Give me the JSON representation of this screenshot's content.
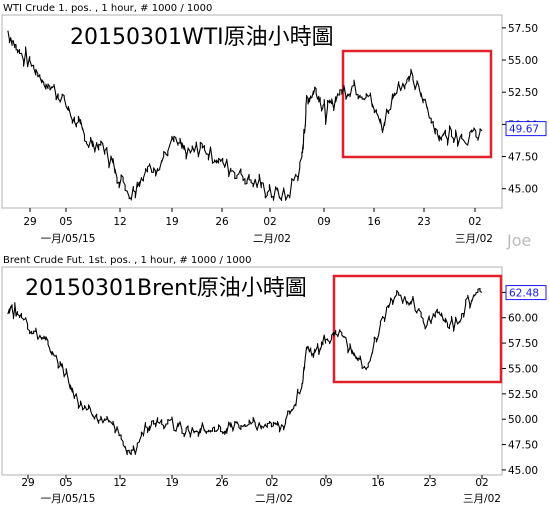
{
  "accent_colors": {
    "highlight_box": "#e0202a",
    "last_price": "#1a1aff",
    "price": "#000000"
  },
  "watermark": "Joe",
  "charts": [
    {
      "id": "wti",
      "header": "WTI Crude 1. pos. , 1 hour, # 1000 / 1000",
      "overlay_title": "20150301WTI原油小時圖",
      "last_value_label": "49.67"
    },
    {
      "id": "brent",
      "header": "Brent Crude Fut. 1st. pos. , 1 hour, # 1000 / 1000",
      "overlay_title": "20150301Brent原油小時圖",
      "last_value_label": "62.48"
    }
  ],
  "chart_data": [
    {
      "type": "line",
      "title": "20150301WTI原油小時圖",
      "subtitle": "WTI Crude 1. pos. , 1 hour, # 1000 / 1000",
      "xlabel": "",
      "ylabel": "",
      "ylim": [
        43.5,
        58.5
      ],
      "yticks": [
        "57.50",
        "55.00",
        "52.50",
        "50.00",
        "47.50",
        "45.00"
      ],
      "ytick_values": [
        57.5,
        55,
        52.5,
        50,
        47.5,
        45
      ],
      "xticks": [
        "29",
        "05",
        "12",
        "19",
        "26",
        "02",
        "09",
        "16",
        "23",
        "02"
      ],
      "month_labels": [
        "一月/05/15",
        "二月/02",
        "三月/02"
      ],
      "x": [
        0,
        2,
        5,
        8,
        11,
        14,
        17,
        20,
        23,
        26,
        29,
        32,
        35,
        38,
        41,
        44,
        47,
        50,
        53,
        56,
        59,
        62,
        63,
        65,
        67,
        70,
        73,
        76,
        79,
        82,
        85,
        88,
        91,
        94,
        97,
        100
      ],
      "series": [
        {
          "values": [
            57.2,
            55.8,
            54.6,
            53.2,
            52.3,
            50.3,
            48.6,
            48.4,
            46.2,
            44.6,
            46.4,
            47.0,
            48.7,
            47.6,
            48.3,
            47.3,
            46.6,
            45.9,
            45.3,
            44.6,
            44.4,
            47.2,
            51.8,
            52.8,
            50.8,
            52.5,
            53.0,
            52.2,
            49.8,
            53.0,
            53.5,
            51.8,
            49.0,
            49.4,
            48.9,
            49.5
          ]
        }
      ],
      "last_value": 49.67,
      "annotations": [
        "red highlight box over the latest period"
      ]
    },
    {
      "type": "line",
      "title": "20150301Brent原油小時圖",
      "subtitle": "Brent Crude Fut. 1st. pos. , 1 hour, # 1000 / 1000",
      "xlabel": "",
      "ylabel": "",
      "ylim": [
        44.5,
        65.0
      ],
      "yticks": [
        "62.50",
        "60.00",
        "57.50",
        "55.00",
        "52.50",
        "50.00",
        "47.50",
        "45.00"
      ],
      "ytick_values": [
        62.5,
        60,
        57.5,
        55,
        52.5,
        50,
        47.5,
        45
      ],
      "xticks": [
        "29",
        "05",
        "12",
        "19",
        "26",
        "02",
        "09",
        "16",
        "23",
        "02"
      ],
      "month_labels": [
        "一月/05/15",
        "二月/02",
        "三月/02"
      ],
      "x": [
        0,
        2,
        5,
        8,
        11,
        14,
        17,
        20,
        23,
        26,
        29,
        32,
        35,
        38,
        41,
        44,
        47,
        50,
        53,
        56,
        59,
        62,
        63,
        65,
        67,
        70,
        73,
        76,
        79,
        82,
        85,
        88,
        91,
        94,
        97,
        100
      ],
      "series": [
        {
          "values": [
            61.0,
            60.5,
            59.0,
            57.5,
            55.5,
            52.5,
            50.5,
            50.0,
            49.0,
            46.0,
            49.5,
            50.0,
            49.5,
            48.8,
            49.0,
            48.8,
            49.2,
            49.5,
            49.3,
            49.2,
            50.0,
            53.5,
            57.0,
            56.5,
            58.0,
            58.5,
            56.5,
            55.0,
            60.0,
            62.0,
            61.8,
            59.5,
            60.5,
            59.0,
            61.5,
            62.5
          ]
        }
      ],
      "last_value": 62.48,
      "annotations": [
        "red highlight box over the latest period"
      ]
    }
  ]
}
